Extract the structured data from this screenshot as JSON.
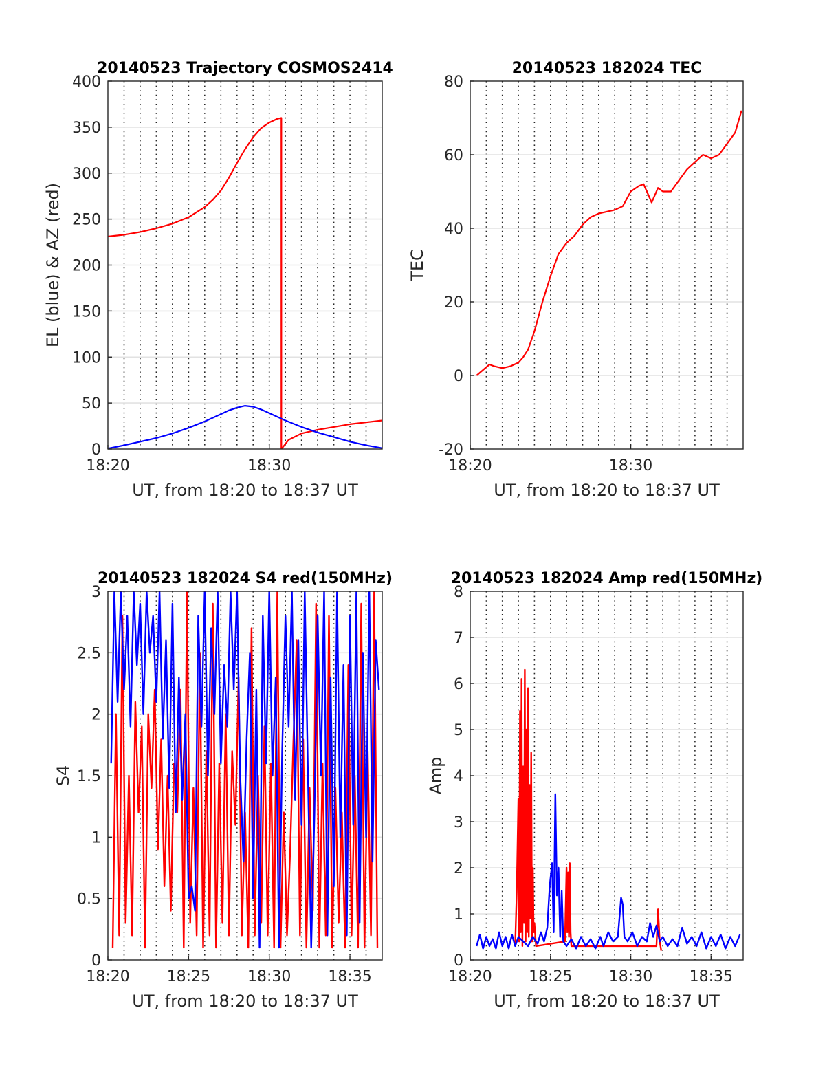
{
  "figure": {
    "background": "#ffffff",
    "line_colors": {
      "red": "#ff0000",
      "blue": "#0000ff"
    }
  },
  "chart_data": [
    {
      "type": "line",
      "title": "20140523 Trajectory COSMOS2414",
      "xlabel": "UT, from 18:20 to 18:37 UT",
      "ylabel": "EL (blue) & AZ (red)",
      "xlim": [
        0,
        17
      ],
      "xunit": "minutes after 18:20 UT",
      "ylim": [
        0,
        400
      ],
      "xticks": [
        {
          "v": 0,
          "label": "18:20"
        },
        {
          "v": 10,
          "label": "18:30"
        }
      ],
      "yticks": [
        0,
        50,
        100,
        150,
        200,
        250,
        300,
        350,
        400
      ],
      "grid": {
        "x_minor_dotted_every": 1,
        "y_major": true
      },
      "series": [
        {
          "color": "#ff0000",
          "x": [
            0,
            1,
            2,
            3,
            4,
            5,
            6,
            6.5,
            7,
            7.5,
            8,
            8.5,
            9,
            9.5,
            10,
            10.5,
            10.75,
            10.75,
            11.2,
            12,
            13,
            14,
            15,
            16,
            17
          ],
          "y": [
            231,
            233,
            236,
            240,
            245,
            252,
            263,
            271,
            281,
            295,
            311,
            326,
            339,
            349,
            355,
            359,
            360,
            0,
            10,
            17,
            21,
            24,
            27,
            29,
            31
          ]
        },
        {
          "color": "#0000ff",
          "x": [
            0,
            1,
            2,
            3,
            4,
            5,
            6,
            7,
            7.5,
            8,
            8.5,
            9,
            9.5,
            10,
            11,
            12,
            13,
            14,
            15,
            16,
            17
          ],
          "y": [
            0.5,
            4,
            8,
            12,
            17,
            23,
            30,
            38,
            42,
            45,
            47,
            46,
            43,
            39,
            31,
            24,
            18,
            13,
            8,
            4,
            1
          ]
        }
      ]
    },
    {
      "type": "line",
      "title": "20140523 182024 TEC",
      "xlabel": "UT, from 18:20 to 18:37 UT",
      "ylabel": "TEC",
      "xlim": [
        0,
        17
      ],
      "xunit": "minutes after 18:20 UT",
      "ylim": [
        -20,
        80
      ],
      "xticks": [
        {
          "v": 0,
          "label": "18:20"
        },
        {
          "v": 10,
          "label": "18:30"
        }
      ],
      "yticks": [
        -20,
        0,
        20,
        40,
        60,
        80
      ],
      "grid": {
        "x_minor_dotted_every": 1,
        "y_major": true
      },
      "series": [
        {
          "color": "#ff0000",
          "x": [
            0.4,
            0.8,
            1.2,
            1.5,
            2,
            2.5,
            3,
            3.3,
            3.6,
            4,
            4.5,
            5,
            5.5,
            6,
            6.5,
            7,
            7.5,
            8,
            8.5,
            9,
            9.5,
            10,
            10.5,
            10.8,
            11,
            11.3,
            11.7,
            12,
            12.5,
            13,
            13.5,
            14,
            14.5,
            15,
            15.5,
            16,
            16.5,
            16.9
          ],
          "y": [
            0,
            1.5,
            3,
            2.5,
            2,
            2.5,
            3.5,
            5,
            7,
            12,
            20,
            27,
            33,
            36,
            38,
            41,
            43,
            44,
            44.5,
            45,
            46,
            50,
            51.5,
            52,
            50,
            47,
            51,
            50,
            50,
            53,
            56,
            58,
            60,
            59,
            60,
            63,
            66,
            72
          ]
        }
      ]
    },
    {
      "type": "line",
      "title": "20140523 182024 S4 red(150MHz)",
      "xlabel": "UT, from 18:20 to 18:37 UT",
      "ylabel": "S4",
      "xlim": [
        0,
        17
      ],
      "xunit": "minutes after 18:20 UT",
      "ylim": [
        0,
        3
      ],
      "xticks": [
        {
          "v": 0,
          "label": "18:20"
        },
        {
          "v": 5,
          "label": "18:25"
        },
        {
          "v": 10,
          "label": "18:30"
        },
        {
          "v": 15,
          "label": "18:35"
        }
      ],
      "yticks": [
        {
          "v": 0,
          "label": "0"
        },
        {
          "v": 0.5,
          "label": "0.5"
        },
        {
          "v": 1,
          "label": "1"
        },
        {
          "v": 1.5,
          "label": "1.5"
        },
        {
          "v": 2,
          "label": "2"
        },
        {
          "v": 2.5,
          "label": "2.5"
        },
        {
          "v": 3,
          "label": "3"
        }
      ],
      "grid": {
        "x_minor_dotted_every": 1,
        "y_major": true
      },
      "series": [
        {
          "color": "#ff0000",
          "x": [
            0.3,
            0.5,
            0.7,
            0.9,
            1.1,
            1.3,
            1.5,
            1.7,
            1.9,
            2.1,
            2.3,
            2.5,
            2.7,
            2.9,
            3.1,
            3.3,
            3.5,
            3.7,
            3.9,
            4.1,
            4.3,
            4.5,
            4.7,
            4.9,
            5.1,
            5.3,
            5.5,
            5.7,
            5.9,
            6.1,
            6.3,
            6.5,
            6.7,
            6.9,
            7.1,
            7.3,
            7.5,
            7.7,
            7.9,
            8.1,
            8.3,
            8.5,
            8.7,
            8.9,
            9.1,
            9.3,
            9.5,
            9.7,
            9.9,
            10.1,
            10.3,
            10.5,
            10.7,
            10.9,
            11.1,
            11.3,
            11.5,
            11.7,
            11.9,
            12.1,
            12.3,
            12.5,
            12.7,
            12.9,
            13.1,
            13.3,
            13.5,
            13.7,
            13.9,
            14.1,
            14.3,
            14.5,
            14.7,
            14.9,
            15.1,
            15.3,
            15.5,
            15.7,
            15.9,
            16.1,
            16.3,
            16.5,
            16.7
          ],
          "y": [
            0.1,
            2.0,
            0.2,
            2.8,
            0.3,
            1.5,
            0.2,
            2.1,
            1.2,
            1.9,
            0.1,
            2.0,
            1.4,
            2.2,
            0.9,
            1.8,
            0.6,
            1.5,
            0.4,
            1.6,
            1.2,
            2.2,
            0.1,
            3.0,
            0.3,
            1.4,
            0.2,
            2.5,
            0.1,
            1.7,
            0.2,
            2.9,
            0.1,
            1.6,
            0.3,
            2.0,
            0.2,
            1.7,
            1.1,
            2.3,
            0.2,
            1.2,
            0.1,
            2.7,
            0.2,
            1.5,
            0.3,
            1.9,
            0.2,
            1.6,
            0.1,
            3.0,
            0.1,
            1.2,
            0.2,
            0.9,
            1.8,
            2.6,
            0.2,
            1.8,
            0.1,
            1.4,
            0.4,
            2.9,
            0.1,
            1.6,
            0.2,
            2.8,
            0.1,
            1.4,
            0.3,
            1.2,
            0.1,
            2.4,
            0.2,
            1.5,
            0.1,
            2.9,
            0.1,
            1.7,
            0.2,
            3.0,
            0.1
          ]
        },
        {
          "color": "#0000ff",
          "x": [
            0.2,
            0.4,
            0.6,
            0.8,
            1.0,
            1.2,
            1.4,
            1.6,
            1.8,
            2.0,
            2.2,
            2.4,
            2.6,
            2.8,
            3.0,
            3.2,
            3.4,
            3.6,
            3.8,
            4.0,
            4.2,
            4.4,
            4.6,
            4.8,
            5.0,
            5.2,
            5.4,
            5.6,
            5.8,
            6.0,
            6.2,
            6.4,
            6.6,
            6.8,
            7.0,
            7.2,
            7.4,
            7.6,
            7.8,
            8.0,
            8.2,
            8.4,
            8.6,
            8.8,
            9.0,
            9.2,
            9.4,
            9.6,
            9.8,
            10.0,
            10.2,
            10.4,
            10.6,
            10.8,
            11.0,
            11.2,
            11.4,
            11.6,
            11.8,
            12.0,
            12.2,
            12.4,
            12.6,
            12.8,
            13.0,
            13.2,
            13.4,
            13.6,
            13.8,
            14.0,
            14.2,
            14.4,
            14.6,
            14.8,
            15.0,
            15.2,
            15.4,
            15.6,
            15.8,
            16.0,
            16.2,
            16.4,
            16.6,
            16.8
          ],
          "y": [
            1.6,
            3.0,
            2.1,
            3.0,
            2.2,
            2.8,
            1.9,
            3.0,
            2.4,
            2.9,
            2.0,
            3.0,
            2.5,
            2.8,
            2.1,
            3.0,
            1.8,
            2.6,
            1.4,
            2.9,
            1.2,
            2.3,
            1.3,
            2.0,
            0.5,
            0.6,
            0.4,
            2.8,
            1.9,
            3.0,
            1.5,
            2.7,
            2.0,
            3.0,
            1.6,
            2.4,
            1.9,
            3.0,
            2.2,
            3.0,
            1.5,
            0.8,
            1.8,
            2.5,
            0.5,
            2.2,
            0.1,
            2.8,
            1.6,
            3.0,
            1.5,
            2.3,
            0.1,
            1.7,
            2.8,
            1.9,
            3.0,
            1.3,
            2.6,
            1.1,
            3.0,
            1.5,
            0.1,
            1.2,
            2.8,
            1.5,
            3.0,
            0.2,
            2.3,
            0.6,
            3.0,
            1.0,
            2.4,
            0.2,
            2.8,
            1.1,
            3.0,
            0.3,
            2.5,
            1.0,
            3.0,
            0.8,
            2.6,
            2.2
          ]
        }
      ]
    },
    {
      "type": "line",
      "title": "20140523 182024 Amp red(150MHz)",
      "xlabel": "UT, from 18:20 to 18:37 UT",
      "ylabel": "Amp",
      "xlim": [
        0,
        17
      ],
      "xunit": "minutes after 18:20 UT",
      "ylim": [
        0,
        8
      ],
      "xticks": [
        {
          "v": 0,
          "label": "18:20"
        },
        {
          "v": 5,
          "label": "18:25"
        },
        {
          "v": 10,
          "label": "18:30"
        },
        {
          "v": 15,
          "label": "18:35"
        }
      ],
      "yticks": [
        0,
        1,
        2,
        3,
        4,
        5,
        6,
        7,
        8
      ],
      "grid": {
        "x_minor_dotted_every": 1,
        "y_major": true
      },
      "series": [
        {
          "color": "#ff0000",
          "x": [
            2.8,
            2.9,
            3.0,
            3.05,
            3.1,
            3.15,
            3.2,
            3.25,
            3.3,
            3.35,
            3.4,
            3.45,
            3.5,
            3.55,
            3.6,
            3.65,
            3.7,
            3.75,
            3.8,
            3.85,
            3.9,
            3.95,
            4.0,
            4.1,
            5.9,
            6.0,
            6.05,
            6.1,
            6.15,
            6.2,
            6.25,
            6.3,
            11.6,
            11.7,
            11.8,
            11.9
          ],
          "y": [
            0.3,
            1.5,
            3.5,
            0.4,
            5.4,
            0.6,
            6.1,
            0.3,
            4.2,
            0.8,
            6.3,
            0.4,
            5.0,
            0.6,
            5.9,
            0.5,
            3.8,
            0.9,
            4.5,
            0.4,
            2.0,
            0.6,
            0.8,
            0.3,
            0.4,
            2.0,
            0.6,
            1.9,
            0.5,
            2.1,
            0.6,
            0.3,
            0.3,
            1.1,
            0.4,
            0.2
          ]
        },
        {
          "color": "#0000ff",
          "x": [
            0.4,
            0.6,
            0.8,
            1.0,
            1.2,
            1.4,
            1.6,
            1.8,
            2.0,
            2.2,
            2.4,
            2.6,
            2.8,
            3.0,
            3.3,
            3.6,
            3.9,
            4.2,
            4.4,
            4.6,
            4.8,
            4.95,
            5.1,
            5.2,
            5.3,
            5.4,
            5.5,
            5.6,
            5.7,
            5.8,
            6.0,
            6.3,
            6.6,
            6.9,
            7.2,
            7.5,
            7.8,
            8.1,
            8.3,
            8.6,
            8.9,
            9.2,
            9.4,
            9.5,
            9.6,
            9.8,
            10.1,
            10.4,
            10.7,
            11.0,
            11.2,
            11.4,
            11.6,
            11.8,
            12.0,
            12.3,
            12.6,
            12.9,
            13.2,
            13.5,
            13.8,
            14.1,
            14.4,
            14.7,
            15.0,
            15.3,
            15.6,
            15.9,
            16.2,
            16.5,
            16.8
          ],
          "y": [
            0.3,
            0.55,
            0.25,
            0.5,
            0.3,
            0.45,
            0.25,
            0.6,
            0.3,
            0.5,
            0.25,
            0.55,
            0.3,
            0.5,
            0.4,
            0.3,
            0.5,
            0.35,
            0.6,
            0.4,
            0.7,
            1.6,
            2.1,
            0.6,
            3.6,
            1.4,
            2.0,
            0.5,
            1.5,
            0.4,
            0.3,
            0.45,
            0.25,
            0.5,
            0.3,
            0.45,
            0.25,
            0.5,
            0.3,
            0.6,
            0.4,
            0.5,
            1.35,
            1.2,
            0.5,
            0.4,
            0.6,
            0.3,
            0.5,
            0.4,
            0.8,
            0.5,
            0.75,
            0.4,
            0.5,
            0.3,
            0.45,
            0.3,
            0.7,
            0.35,
            0.5,
            0.3,
            0.6,
            0.25,
            0.5,
            0.3,
            0.55,
            0.25,
            0.5,
            0.3,
            0.55
          ]
        }
      ]
    }
  ]
}
